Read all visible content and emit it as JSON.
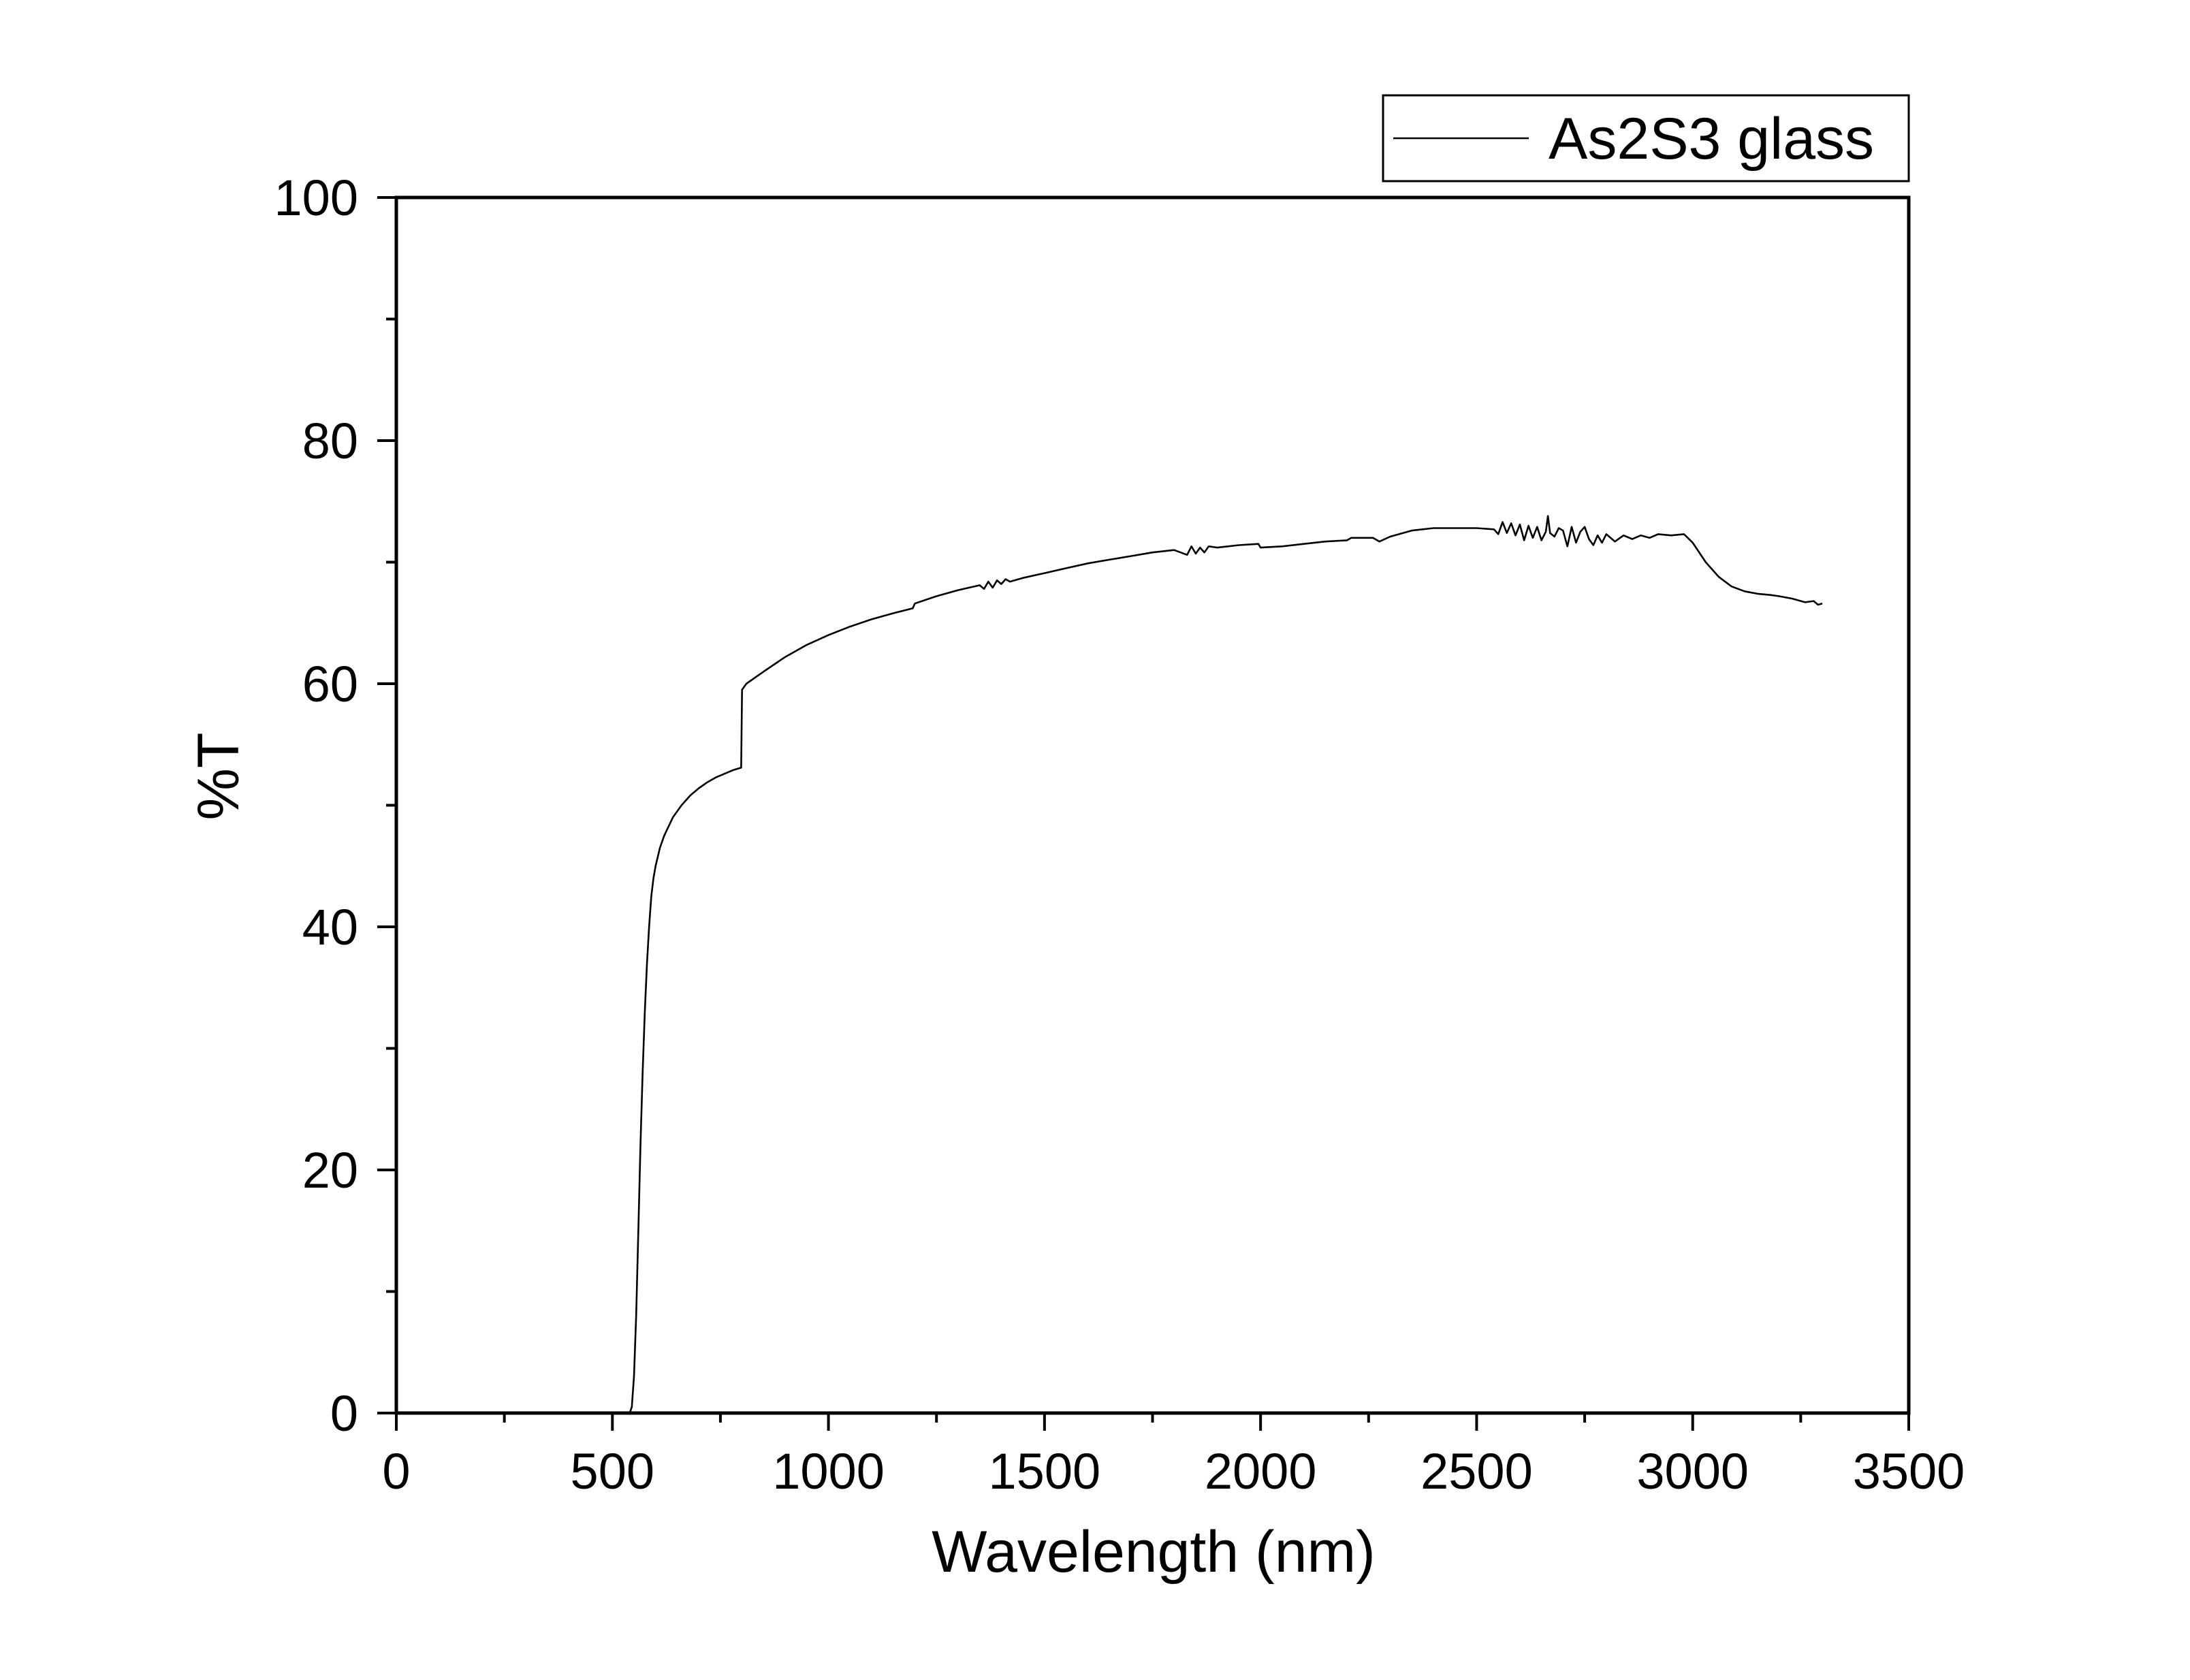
{
  "chart_data": {
    "type": "line",
    "title": "",
    "xlabel": "Wavelength (nm)",
    "ylabel": "%T",
    "xlim": [
      0,
      3500
    ],
    "ylim": [
      0,
      100
    ],
    "x_ticks": [
      0,
      500,
      1000,
      1500,
      2000,
      2500,
      3000,
      3500
    ],
    "y_ticks": [
      0,
      20,
      40,
      60,
      80,
      100
    ],
    "grid": false,
    "legend": {
      "position": "top-right",
      "outside_plot": true
    },
    "colors": {
      "line": "#000000",
      "axes": "#000000",
      "background": "#ffffff"
    },
    "series": [
      {
        "name": "As2S3 glass",
        "points": [
          [
            540,
            0
          ],
          [
            545,
            0.5
          ],
          [
            550,
            3
          ],
          [
            555,
            8
          ],
          [
            560,
            15
          ],
          [
            565,
            22
          ],
          [
            570,
            28
          ],
          [
            575,
            33
          ],
          [
            580,
            37
          ],
          [
            585,
            40
          ],
          [
            590,
            42.5
          ],
          [
            595,
            44
          ],
          [
            600,
            45
          ],
          [
            610,
            46.5
          ],
          [
            620,
            47.5
          ],
          [
            640,
            49
          ],
          [
            660,
            50
          ],
          [
            680,
            50.8
          ],
          [
            700,
            51.4
          ],
          [
            720,
            51.9
          ],
          [
            740,
            52.3
          ],
          [
            760,
            52.6
          ],
          [
            780,
            52.9
          ],
          [
            798,
            53.1
          ],
          [
            800,
            59.5
          ],
          [
            810,
            60
          ],
          [
            850,
            61
          ],
          [
            900,
            62.2
          ],
          [
            950,
            63.2
          ],
          [
            1000,
            64
          ],
          [
            1050,
            64.7
          ],
          [
            1100,
            65.3
          ],
          [
            1150,
            65.8
          ],
          [
            1195,
            66.2
          ],
          [
            1200,
            66.6
          ],
          [
            1250,
            67.2
          ],
          [
            1300,
            67.7
          ],
          [
            1350,
            68.1
          ],
          [
            1360,
            67.8
          ],
          [
            1370,
            68.4
          ],
          [
            1380,
            67.9
          ],
          [
            1390,
            68.5
          ],
          [
            1400,
            68.2
          ],
          [
            1410,
            68.6
          ],
          [
            1420,
            68.4
          ],
          [
            1450,
            68.7
          ],
          [
            1500,
            69.1
          ],
          [
            1550,
            69.5
          ],
          [
            1600,
            69.9
          ],
          [
            1650,
            70.2
          ],
          [
            1700,
            70.5
          ],
          [
            1750,
            70.8
          ],
          [
            1800,
            71
          ],
          [
            1830,
            70.6
          ],
          [
            1840,
            71.3
          ],
          [
            1850,
            70.7
          ],
          [
            1860,
            71.2
          ],
          [
            1870,
            70.8
          ],
          [
            1880,
            71.3
          ],
          [
            1900,
            71.2
          ],
          [
            1950,
            71.4
          ],
          [
            1995,
            71.5
          ],
          [
            2000,
            71.2
          ],
          [
            2050,
            71.3
          ],
          [
            2100,
            71.5
          ],
          [
            2150,
            71.7
          ],
          [
            2200,
            71.8
          ],
          [
            2210,
            72
          ],
          [
            2260,
            72
          ],
          [
            2275,
            71.7
          ],
          [
            2300,
            72.1
          ],
          [
            2350,
            72.6
          ],
          [
            2400,
            72.8
          ],
          [
            2450,
            72.8
          ],
          [
            2500,
            72.8
          ],
          [
            2540,
            72.7
          ],
          [
            2550,
            72.3
          ],
          [
            2560,
            73.3
          ],
          [
            2570,
            72.4
          ],
          [
            2580,
            73.2
          ],
          [
            2590,
            72.2
          ],
          [
            2600,
            73.1
          ],
          [
            2610,
            71.8
          ],
          [
            2620,
            73
          ],
          [
            2630,
            72
          ],
          [
            2640,
            72.9
          ],
          [
            2650,
            71.8
          ],
          [
            2660,
            72.5
          ],
          [
            2665,
            73.8
          ],
          [
            2670,
            72.4
          ],
          [
            2680,
            72.1
          ],
          [
            2690,
            72.8
          ],
          [
            2700,
            72.6
          ],
          [
            2710,
            71.3
          ],
          [
            2720,
            72.9
          ],
          [
            2730,
            71.6
          ],
          [
            2740,
            72.5
          ],
          [
            2750,
            72.9
          ],
          [
            2760,
            71.9
          ],
          [
            2770,
            71.4
          ],
          [
            2780,
            72.2
          ],
          [
            2790,
            71.6
          ],
          [
            2800,
            72.3
          ],
          [
            2820,
            71.7
          ],
          [
            2840,
            72.2
          ],
          [
            2860,
            71.9
          ],
          [
            2880,
            72.2
          ],
          [
            2900,
            72
          ],
          [
            2920,
            72.3
          ],
          [
            2950,
            72.2
          ],
          [
            2980,
            72.3
          ],
          [
            3000,
            71.6
          ],
          [
            3030,
            70
          ],
          [
            3060,
            68.8
          ],
          [
            3090,
            68
          ],
          [
            3120,
            67.6
          ],
          [
            3150,
            67.4
          ],
          [
            3180,
            67.3
          ],
          [
            3200,
            67.2
          ],
          [
            3230,
            67
          ],
          [
            3260,
            66.7
          ],
          [
            3280,
            66.8
          ],
          [
            3290,
            66.5
          ],
          [
            3300,
            66.6
          ]
        ]
      }
    ]
  }
}
